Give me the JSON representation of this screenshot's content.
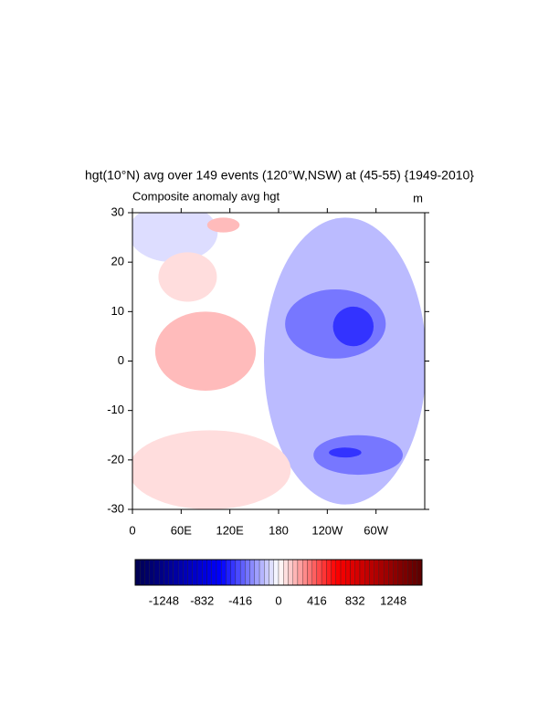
{
  "chart_data": {
    "type": "contour",
    "title": "hgt(10°N) avg over 149 events (120°W,NSW) at (45-55) {1949-2010}",
    "subtitle": "Composite anomaly avg hgt",
    "units": "m",
    "xlim": [
      0,
      360
    ],
    "xticks": [
      0,
      {
        "value": 60,
        "label": "60E"
      },
      {
        "value": 120,
        "label": "120E"
      },
      180,
      {
        "value": 240,
        "label": "120W"
      },
      {
        "value": 300,
        "label": "60W"
      }
    ],
    "ylim": [
      -30,
      30
    ],
    "yticks": [
      -30,
      -20,
      -10,
      0,
      10,
      20,
      30
    ],
    "clim": [
      -1560,
      1560
    ],
    "cticks": [
      -1248,
      -832,
      -416,
      0,
      416,
      832,
      1248
    ],
    "regions": [
      {
        "level": -104,
        "lon": 262,
        "lat": 0,
        "dlon": 100,
        "dlat": 29
      },
      {
        "level": -52,
        "lon": 50,
        "lat": 26,
        "dlon": 55,
        "dlat": 6
      },
      {
        "level": 52,
        "lon": 95,
        "lat": -22,
        "dlon": 100,
        "dlat": 8
      },
      {
        "level": 104,
        "lon": 90,
        "lat": 2,
        "dlon": 62,
        "dlat": 8
      },
      {
        "level": 52,
        "lon": 68,
        "lat": 17,
        "dlon": 36,
        "dlat": 5
      },
      {
        "level": 104,
        "lon": 112,
        "lat": 27.5,
        "dlon": 20,
        "dlat": 1.5
      },
      {
        "level": -208,
        "lon": 250,
        "lat": 7.5,
        "dlon": 62,
        "dlat": 7
      },
      {
        "level": -312,
        "lon": 272,
        "lat": 7,
        "dlon": 25,
        "dlat": 4
      },
      {
        "level": -208,
        "lon": 278,
        "lat": -19,
        "dlon": 55,
        "dlat": 4
      },
      {
        "level": -312,
        "lon": 262,
        "lat": -18.5,
        "dlon": 20,
        "dlat": 1
      }
    ]
  }
}
